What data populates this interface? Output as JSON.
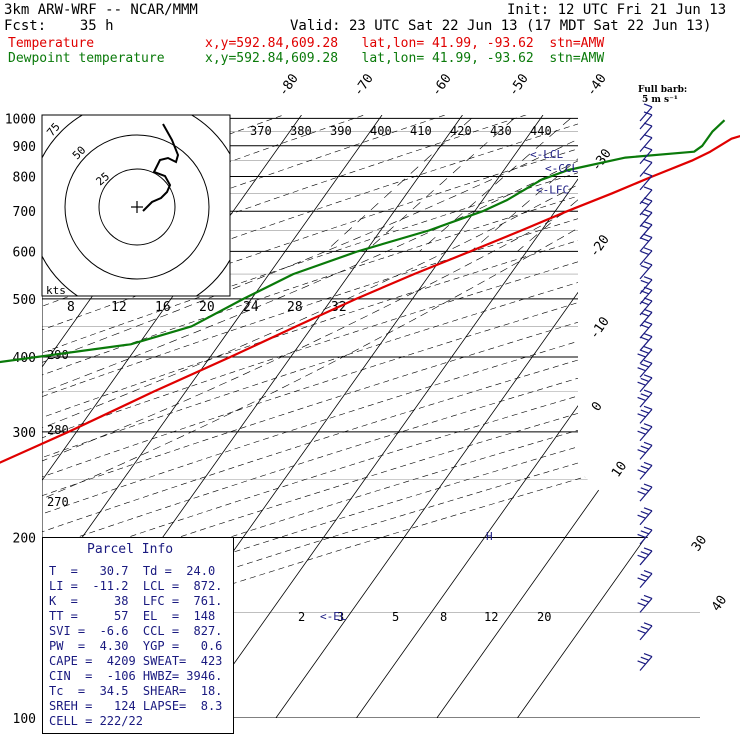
{
  "header": {
    "line1_left": "3km ARW-WRF -- NCAR/MMM",
    "line1_right": "Init: 12 UTC Fri 21 Jun 13",
    "line2_left": "Fcst:    35 h",
    "line2_right": "Valid: 23 UTC Sat 22 Jun 13 (17 MDT Sat 22 Jun 13)",
    "temp_label": "Temperature",
    "temp_info": "x,y=592.84,609.28   lat,lon= 41.99, -93.62  stn=AMW",
    "dew_label": "Dewpoint temperature",
    "dew_info": "x,y=592.84,609.28   lat,lon= 41.99, -93.62  stn=AMW",
    "barb_title": "Full barb:",
    "barb_units": "5 m s⁻¹"
  },
  "colors": {
    "temperature": "#e00000",
    "dewpoint": "#0a7a0a",
    "hodograph": "#000000",
    "wind_barbs": "#1a1a80",
    "annotations": "#1a1a80"
  },
  "chart_data": {
    "type": "skew-t log-p sounding",
    "pressure_labels": [
      "100",
      "200",
      "300",
      "400",
      "500",
      "600",
      "700",
      "800",
      "900",
      "1000"
    ],
    "pressure_levels": [
      100,
      200,
      300,
      400,
      500,
      600,
      700,
      800,
      900,
      1000
    ],
    "isotherm_labels": [
      "-80",
      "-70",
      "-60",
      "-50",
      "-40",
      "-30",
      "-20",
      "-10",
      "0",
      "10",
      "20",
      "30",
      "40"
    ],
    "isotherms": [
      -80,
      -70,
      -60,
      -50,
      -40,
      -30,
      -20,
      -10,
      0,
      10,
      20,
      30,
      40
    ],
    "theta_labels": [
      "370",
      "380",
      "390",
      "400",
      "410",
      "420",
      "430",
      "440"
    ],
    "theta_values": [
      370,
      380,
      390,
      400,
      410,
      420,
      430,
      440
    ],
    "moist_labels": [
      "290",
      "280",
      "270"
    ],
    "kts_label": "kts",
    "hodo_speed_labels": [
      "8",
      "12",
      "16",
      "20",
      "24",
      "28",
      "32"
    ],
    "hodo_ring_labels": [
      "75",
      "50",
      "25"
    ],
    "mixing_ratio_labels": [
      "2",
      "3",
      "5",
      "8",
      "12",
      "20"
    ],
    "temperature": {
      "name": "Temperature",
      "points": [
        {
          "p": 993,
          "t": 32
        },
        {
          "p": 970,
          "t": 29.5
        },
        {
          "p": 925,
          "t": 25.5
        },
        {
          "p": 880,
          "t": 24
        },
        {
          "p": 850,
          "t": 22.5
        },
        {
          "p": 800,
          "t": 19
        },
        {
          "p": 750,
          "t": 15.5
        },
        {
          "p": 700,
          "t": 11.5
        },
        {
          "p": 650,
          "t": 7.5
        },
        {
          "p": 600,
          "t": 3
        },
        {
          "p": 550,
          "t": -2
        },
        {
          "p": 500,
          "t": -7
        },
        {
          "p": 450,
          "t": -12
        },
        {
          "p": 400,
          "t": -17.5
        },
        {
          "p": 350,
          "t": -24
        },
        {
          "p": 300,
          "t": -31
        },
        {
          "p": 250,
          "t": -40
        },
        {
          "p": 200,
          "t": -51
        },
        {
          "p": 175,
          "t": -57
        },
        {
          "p": 155,
          "t": -63
        },
        {
          "p": 150,
          "t": -63
        },
        {
          "p": 135,
          "t": -60
        },
        {
          "p": 120,
          "t": -58
        },
        {
          "p": 110,
          "t": -59
        },
        {
          "p": 100,
          "t": -59
        }
      ]
    },
    "dewpoint": {
      "name": "Dewpoint temperature",
      "points": [
        {
          "p": 993,
          "t": 23
        },
        {
          "p": 950,
          "t": 22.5
        },
        {
          "p": 900,
          "t": 22.5
        },
        {
          "p": 880,
          "t": 22
        },
        {
          "p": 860,
          "t": 14
        },
        {
          "p": 820,
          "t": 8
        },
        {
          "p": 790,
          "t": 5.5
        },
        {
          "p": 730,
          "t": 3
        },
        {
          "p": 700,
          "t": 1
        },
        {
          "p": 680,
          "t": -1
        },
        {
          "p": 650,
          "t": -4
        },
        {
          "p": 600,
          "t": -11
        },
        {
          "p": 550,
          "t": -17
        },
        {
          "p": 500,
          "t": -21
        },
        {
          "p": 450,
          "t": -25
        },
        {
          "p": 420,
          "t": -31
        },
        {
          "p": 390,
          "t": -47
        },
        {
          "p": 360,
          "t": -48
        },
        {
          "p": 340,
          "t": -45
        },
        {
          "p": 300,
          "t": -50
        },
        {
          "p": 260,
          "t": -56
        },
        {
          "p": 230,
          "t": -59
        },
        {
          "p": 210,
          "t": -57
        },
        {
          "p": 200,
          "t": -56
        },
        {
          "p": 190,
          "t": -54
        },
        {
          "p": 175,
          "t": -55
        },
        {
          "p": 160,
          "t": -58
        },
        {
          "p": 140,
          "t": -64
        },
        {
          "p": 125,
          "t": -72
        },
        {
          "p": 110,
          "t": -78
        },
        {
          "p": 100,
          "t": -79
        }
      ]
    },
    "level_markers": [
      {
        "label": "<-EL",
        "p": 148
      },
      {
        "label": "<-LFC",
        "p": 761
      },
      {
        "label": "<-CCL",
        "p": 827
      },
      {
        "label": "<-LCL",
        "p": 872
      }
    ],
    "parcel_info": {
      "title": "Parcel Info",
      "rows": [
        "T  =   30.7  Td =  24.0",
        "LI =  -11.2  LCL =  872.",
        "K  =     38  LFC =  761.",
        "TT =     57  EL  =  148",
        "SVI =  -6.6  CCL =  827.",
        "PW  =  4.30  YGP =   0.6",
        "CAPE =  4209 SWEAT=  423",
        "CIN  =  -106 HWBZ= 3946.",
        "Tc  =  34.5  SHEAR=  18.",
        "SREH =   124 LAPSE=  8.3",
        "CELL = 222/22"
      ]
    },
    "axes": {
      "p_range": [
        100,
        1013
      ],
      "p_scale": "log",
      "skewed_temperature_axis": true
    }
  }
}
